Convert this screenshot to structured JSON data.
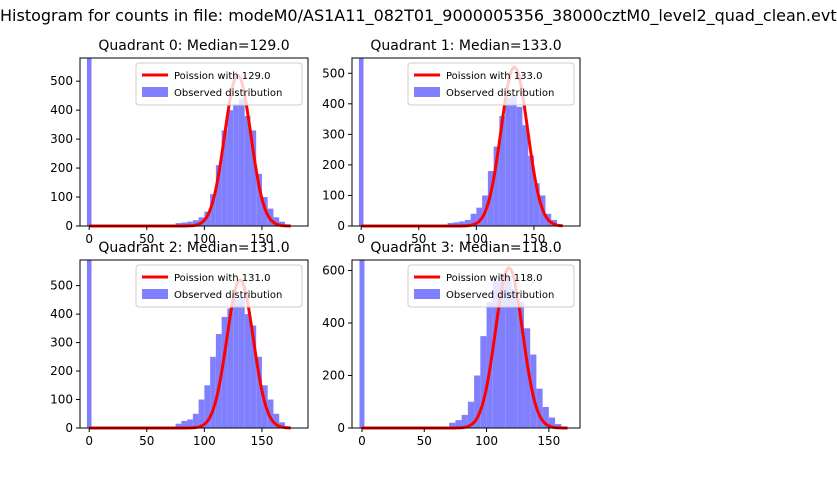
{
  "figure": {
    "title": "Histogram for counts in file: modeM0/AS1A11_082T01_9000005356_38000cztM0_level2_quad_clean.evt"
  },
  "chart_data": [
    {
      "type": "bar",
      "title": "Quadrant 0: Median=129.0",
      "median": 129.0,
      "xlim": [
        -8,
        190
      ],
      "ylim": [
        0,
        580
      ],
      "xticks": [
        "0",
        "50",
        "100",
        "150"
      ],
      "yticks": [
        "0",
        "100",
        "200",
        "300",
        "400",
        "500"
      ],
      "legend": {
        "location": "top-right",
        "poisson_label": "Poission with 129.0",
        "observed_label": "Observed distribution"
      },
      "observed": {
        "bin_start": [
          -2,
          75,
          80,
          85,
          90,
          95,
          100,
          105,
          110,
          115,
          120,
          125,
          130,
          135,
          140,
          145,
          150,
          155,
          160,
          165,
          170
        ],
        "bin_width": [
          4,
          5,
          5,
          5,
          5,
          5,
          5,
          5,
          5,
          5,
          5,
          5,
          5,
          5,
          5,
          5,
          5,
          5,
          5,
          5,
          5
        ],
        "values": [
          580,
          10,
          12,
          15,
          20,
          30,
          50,
          110,
          210,
          330,
          400,
          420,
          440,
          380,
          330,
          180,
          100,
          60,
          30,
          15,
          5
        ]
      },
      "poisson_curve": {
        "x_range": [
          0,
          175
        ],
        "peak": 520
      }
    },
    {
      "type": "bar",
      "title": "Quadrant 1: Median=133.0",
      "median": 133.0,
      "xlim": [
        -8,
        190
      ],
      "ylim": [
        0,
        550
      ],
      "xticks": [
        "0",
        "50",
        "100",
        "150"
      ],
      "yticks": [
        "0",
        "100",
        "200",
        "300",
        "400",
        "500"
      ],
      "legend": {
        "location": "top-right",
        "poisson_label": "Poission with 133.0",
        "observed_label": "Observed distribution"
      },
      "observed": {
        "bin_start": [
          -2,
          75,
          80,
          85,
          90,
          95,
          100,
          105,
          110,
          115,
          120,
          125,
          130,
          135,
          140,
          145,
          150,
          155,
          160,
          165,
          170
        ],
        "bin_width": [
          4,
          5,
          5,
          5,
          5,
          5,
          5,
          5,
          5,
          5,
          5,
          5,
          5,
          5,
          5,
          5,
          5,
          5,
          5,
          5,
          5
        ],
        "values": [
          550,
          10,
          12,
          15,
          20,
          40,
          60,
          100,
          180,
          260,
          360,
          420,
          430,
          390,
          330,
          230,
          140,
          100,
          40,
          20,
          5
        ]
      },
      "poisson_curve": {
        "x_range": [
          0,
          175
        ],
        "peak": 520
      }
    },
    {
      "type": "bar",
      "title": "Quadrant 2: Median=131.0",
      "median": 131.0,
      "xlim": [
        -8,
        190
      ],
      "ylim": [
        0,
        590
      ],
      "xticks": [
        "0",
        "50",
        "100",
        "150"
      ],
      "yticks": [
        "0",
        "100",
        "200",
        "300",
        "400",
        "500"
      ],
      "legend": {
        "location": "top-right",
        "poisson_label": "Poission with 131.0",
        "observed_label": "Observed distribution"
      },
      "observed": {
        "bin_start": [
          -2,
          75,
          80,
          85,
          90,
          95,
          100,
          105,
          110,
          115,
          120,
          125,
          130,
          135,
          140,
          145,
          150,
          155,
          160,
          165,
          170
        ],
        "bin_width": [
          4,
          5,
          5,
          5,
          5,
          5,
          5,
          5,
          5,
          5,
          5,
          5,
          5,
          5,
          5,
          5,
          5,
          5,
          5,
          5,
          5
        ],
        "values": [
          590,
          15,
          25,
          30,
          50,
          100,
          150,
          250,
          330,
          390,
          420,
          450,
          460,
          400,
          360,
          250,
          150,
          100,
          50,
          20,
          5
        ]
      },
      "poisson_curve": {
        "x_range": [
          0,
          175
        ],
        "peak": 520
      }
    },
    {
      "type": "bar",
      "title": "Quadrant 3: Median=118.0",
      "median": 118.0,
      "xlim": [
        -8,
        175
      ],
      "ylim": [
        0,
        640
      ],
      "xticks": [
        "0",
        "50",
        "100",
        "150"
      ],
      "yticks": [
        "0",
        "200",
        "400",
        "600"
      ],
      "legend": {
        "location": "top-right",
        "poisson_label": "Poission with 118.0",
        "observed_label": "Observed distribution"
      },
      "observed": {
        "bin_start": [
          -2,
          70,
          75,
          80,
          85,
          90,
          95,
          100,
          105,
          110,
          115,
          120,
          125,
          130,
          135,
          140,
          145,
          150,
          155,
          160
        ],
        "bin_width": [
          4,
          5,
          5,
          5,
          5,
          5,
          5,
          5,
          5,
          5,
          5,
          5,
          5,
          5,
          5,
          5,
          5,
          5,
          5,
          5
        ],
        "values": [
          640,
          20,
          30,
          50,
          100,
          200,
          350,
          480,
          560,
          590,
          580,
          530,
          480,
          380,
          280,
          150,
          80,
          40,
          15,
          5
        ]
      },
      "poisson_curve": {
        "x_range": [
          0,
          165
        ],
        "peak": 610
      }
    }
  ],
  "colors": {
    "observed": "#8080ff",
    "poisson": "#ff0000",
    "axis": "#000000",
    "legend_border": "#cccccc"
  }
}
